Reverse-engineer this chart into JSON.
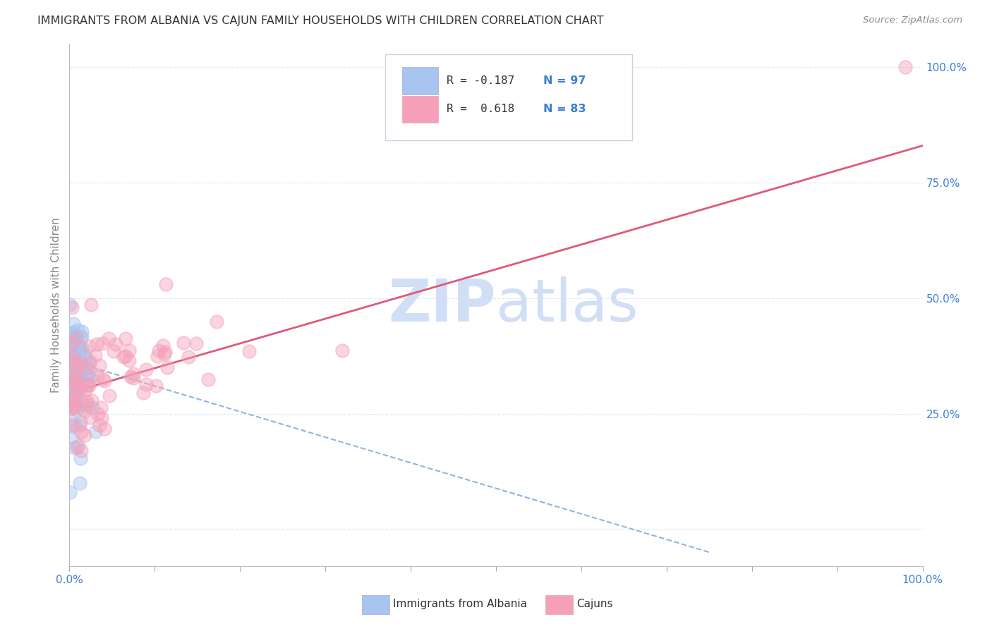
{
  "title": "IMMIGRANTS FROM ALBANIA VS CAJUN FAMILY HOUSEHOLDS WITH CHILDREN CORRELATION CHART",
  "source": "Source: ZipAtlas.com",
  "ylabel": "Family Households with Children",
  "legend_albania_R": "-0.187",
  "legend_albania_N": "97",
  "legend_cajun_R": "0.618",
  "legend_cajun_N": "83",
  "albania_color": "#a8c4f0",
  "cajun_color": "#f5a0b8",
  "albania_line_color": "#7aaad8",
  "cajun_line_color": "#e05878",
  "blue_text_color": "#3a7fd5",
  "dark_text_color": "#333333",
  "watermark_color": "#d0dff5",
  "background_color": "#ffffff",
  "grid_color": "#dde8f0",
  "axis_label_color": "#3a7fd5",
  "axis_tick_color": "#888888",
  "ytick_positions": [
    0.0,
    0.25,
    0.5,
    0.75,
    1.0
  ],
  "ytick_labels": [
    "",
    "25.0%",
    "50.0%",
    "75.0%",
    "100.0%"
  ],
  "xlim": [
    0.0,
    1.0
  ],
  "ylim": [
    -0.08,
    1.05
  ],
  "cajun_line_x0": 0.0,
  "cajun_line_y0": 0.295,
  "cajun_line_x1": 1.0,
  "cajun_line_y1": 0.83,
  "albania_line_x0": 0.0,
  "albania_line_y0": 0.365,
  "albania_line_x1": 0.75,
  "albania_line_y1": -0.05
}
